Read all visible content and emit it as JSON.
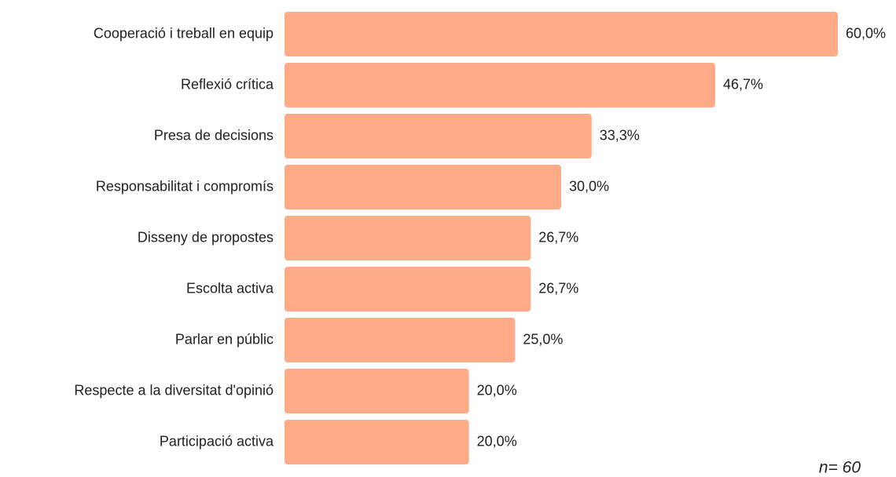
{
  "chart_data": {
    "type": "bar",
    "orientation": "horizontal",
    "categories": [
      "Cooperació i treball en equip",
      "Reflexió crítica",
      "Presa de decisions",
      "Responsabilitat i compromís",
      "Disseny de propostes",
      "Escolta activa",
      "Parlar en públic",
      "Respecte a la diversitat d'opinió",
      "Participació activa"
    ],
    "values": [
      60.0,
      46.7,
      33.3,
      30.0,
      26.7,
      26.7,
      25.0,
      20.0,
      20.0
    ],
    "value_labels": [
      "60,0%",
      "46,7%",
      "33,3%",
      "30,0%",
      "26,7%",
      "26,7%",
      "25,0%",
      "20,0%",
      "20,0%"
    ],
    "color": "#ffab87",
    "annotation": "n= 60"
  }
}
